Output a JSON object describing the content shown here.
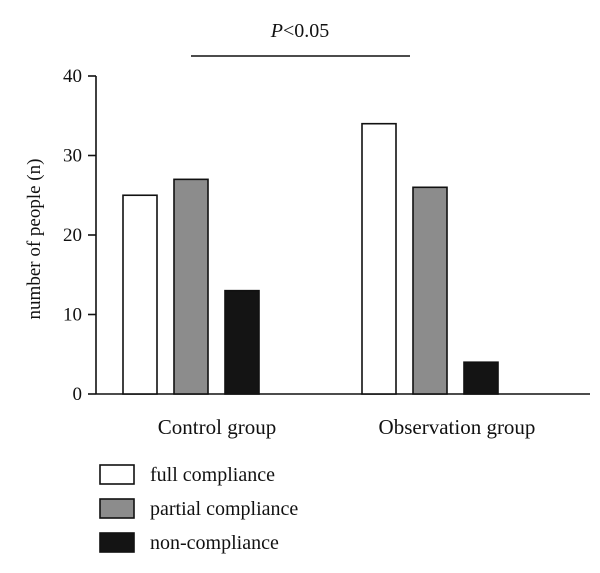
{
  "chart_data": {
    "type": "bar",
    "categories": [
      "Control group",
      "Observation group"
    ],
    "series": [
      {
        "name": "full compliance",
        "color": "#ffffff",
        "values": [
          25,
          34
        ]
      },
      {
        "name": "partial compliance",
        "color": "#8c8c8c",
        "values": [
          27,
          26
        ]
      },
      {
        "name": "non-compliance",
        "color": "#141414",
        "values": [
          13,
          4
        ]
      }
    ],
    "ylabel": "number of people (n)",
    "xlabel": "",
    "ylim": [
      0,
      40
    ],
    "yticks": [
      0,
      10,
      20,
      30,
      40
    ],
    "grid": false,
    "legend_position": "bottom-left",
    "annotation": {
      "text": "P<0.05",
      "italic_part": "P",
      "spans": [
        "Control group",
        "Observation group"
      ]
    }
  }
}
